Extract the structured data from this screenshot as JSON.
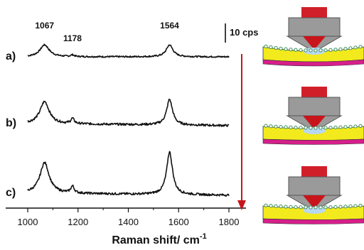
{
  "chart_data": {
    "type": "line",
    "xlabel": "Raman shift/ cm",
    "xlabel_superscript": "-1",
    "xlim": [
      960,
      1830
    ],
    "x_ticks": [
      1000,
      1200,
      1400,
      1600,
      1800
    ],
    "scale_bar": {
      "label": "10 cps",
      "value": 10
    },
    "peak_labels": [
      {
        "x": 1067,
        "text": "1067"
      },
      {
        "x": 1178,
        "text": "1178"
      },
      {
        "x": 1564,
        "text": "1564"
      }
    ],
    "series": [
      {
        "name": "a)",
        "peaks": [
          {
            "x": 1067,
            "height": 7.0,
            "width": 22
          },
          {
            "x": 1178,
            "height": 1.0,
            "width": 8
          },
          {
            "x": 1564,
            "height": 7.0,
            "width": 16
          }
        ]
      },
      {
        "name": "b)",
        "peaks": [
          {
            "x": 1067,
            "height": 13.0,
            "width": 22
          },
          {
            "x": 1178,
            "height": 3.0,
            "width": 8
          },
          {
            "x": 1564,
            "height": 15.0,
            "width": 14
          }
        ]
      },
      {
        "name": "c)",
        "peaks": [
          {
            "x": 1067,
            "height": 18.0,
            "width": 22
          },
          {
            "x": 1178,
            "height": 4.0,
            "width": 8
          },
          {
            "x": 1564,
            "height": 25.0,
            "width": 14
          }
        ]
      }
    ],
    "colors": {
      "trace": "#111111",
      "arrow": "#c8151b"
    }
  },
  "schematics": {
    "colors": {
      "lens_body": "#9a9a9a",
      "lens_top": "#d11f2a",
      "lens_tip": "#c8151b",
      "film": "#f2ea1c",
      "substrate": "#d61f8a",
      "molecule": "#3a8f5a",
      "gap": "#b8d8f2"
    }
  }
}
